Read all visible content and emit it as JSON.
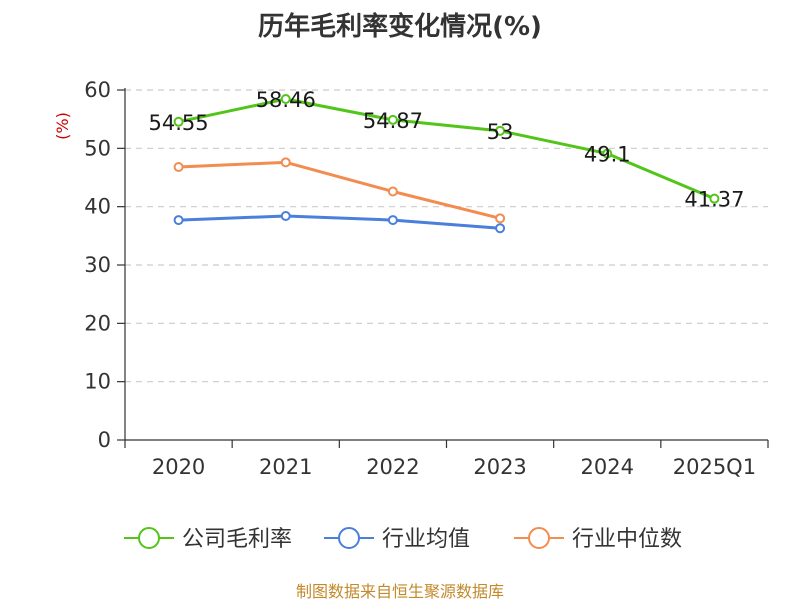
{
  "chart_data": {
    "type": "line",
    "title": "历年毛利率变化情况(%)",
    "ylabel": "(%)",
    "categories": [
      "2020",
      "2021",
      "2022",
      "2023",
      "2024",
      "2025Q1"
    ],
    "ylim": [
      0,
      60
    ],
    "yticks": [
      0,
      10,
      20,
      30,
      40,
      50,
      60
    ],
    "grid": true,
    "legend_position": "bottom",
    "series": [
      {
        "name": "公司毛利率",
        "color": "#52c41a",
        "values": [
          54.55,
          58.46,
          54.87,
          53,
          49.1,
          41.37
        ],
        "labels": [
          "54.55",
          "58.46",
          "54.87",
          "53",
          "49.1",
          "41.37"
        ]
      },
      {
        "name": "行业均值",
        "color": "#4a7fdc",
        "values": [
          37.7,
          38.4,
          37.7,
          36.3,
          null,
          null
        ]
      },
      {
        "name": "行业中位数",
        "color": "#f28c4f",
        "values": [
          46.8,
          47.6,
          42.6,
          38,
          null,
          null
        ]
      }
    ]
  },
  "footer": "制图数据来自恒生聚源数据库"
}
